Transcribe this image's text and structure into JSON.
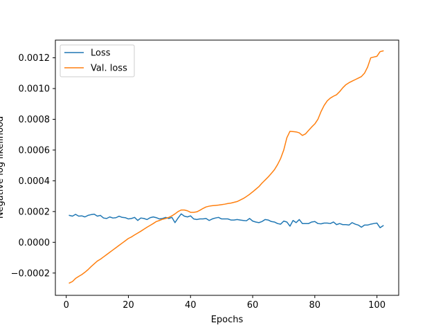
{
  "chart_data": {
    "type": "line",
    "xlabel": "Epochs",
    "ylabel": "Negative log likelihood",
    "xlim": [
      -3.5,
      107
    ],
    "ylim": [
      -0.000345,
      0.001315
    ],
    "xticks": [
      {
        "value": 0,
        "label": "0"
      },
      {
        "value": 20,
        "label": "20"
      },
      {
        "value": 40,
        "label": "40"
      },
      {
        "value": 60,
        "label": "60"
      },
      {
        "value": 80,
        "label": "80"
      },
      {
        "value": 100,
        "label": "100"
      }
    ],
    "yticks": [
      {
        "value": -0.0002,
        "label": "−0.0002"
      },
      {
        "value": 0.0,
        "label": "0.0000"
      },
      {
        "value": 0.0002,
        "label": "0.0002"
      },
      {
        "value": 0.0004,
        "label": "0.0004"
      },
      {
        "value": 0.0006,
        "label": "0.0006"
      },
      {
        "value": 0.0008,
        "label": "0.0008"
      },
      {
        "value": 0.001,
        "label": "0.0010"
      },
      {
        "value": 0.0012,
        "label": "0.0012"
      }
    ],
    "legend_position": "top-left",
    "grid": false,
    "x": [
      1,
      2,
      3,
      4,
      5,
      6,
      7,
      8,
      9,
      10,
      11,
      12,
      13,
      14,
      15,
      16,
      17,
      18,
      19,
      20,
      21,
      22,
      23,
      24,
      25,
      26,
      27,
      28,
      29,
      30,
      31,
      32,
      33,
      34,
      35,
      36,
      37,
      38,
      39,
      40,
      41,
      42,
      43,
      44,
      45,
      46,
      47,
      48,
      49,
      50,
      51,
      52,
      53,
      54,
      55,
      56,
      57,
      58,
      59,
      60,
      61,
      62,
      63,
      64,
      65,
      66,
      67,
      68,
      69,
      70,
      71,
      72,
      73,
      74,
      75,
      76,
      77,
      78,
      79,
      80,
      81,
      82,
      83,
      84,
      85,
      86,
      87,
      88,
      89,
      90,
      91,
      92,
      93,
      94,
      95,
      96,
      97,
      98,
      99,
      100,
      101,
      102
    ],
    "series": [
      {
        "name": "Loss",
        "color": "#1f77b4",
        "values": [
          0.000175,
          0.00017,
          0.000182,
          0.00017,
          0.000172,
          0.000165,
          0.000175,
          0.00018,
          0.000183,
          0.00017,
          0.000175,
          0.000158,
          0.000155,
          0.000165,
          0.000158,
          0.00016,
          0.00017,
          0.000162,
          0.00016,
          0.000152,
          0.000155,
          0.000162,
          0.000142,
          0.000158,
          0.000155,
          0.000148,
          0.00016,
          0.000165,
          0.00016,
          0.000152,
          0.000155,
          0.000162,
          0.000155,
          0.000162,
          0.000128,
          0.000158,
          0.000185,
          0.00017,
          0.000165,
          0.000172,
          0.000152,
          0.000148,
          0.000152,
          0.000152,
          0.000155,
          0.000142,
          0.000152,
          0.000158,
          0.000162,
          0.000152,
          0.000152,
          0.000152,
          0.000145,
          0.000145,
          0.000148,
          0.000145,
          0.000142,
          0.00014,
          0.000155,
          0.000138,
          0.000132,
          0.000128,
          0.000135,
          0.000148,
          0.000145,
          0.000135,
          0.000132,
          0.000122,
          0.000118,
          0.000138,
          0.000132,
          0.000105,
          0.000142,
          0.000128,
          0.000148,
          0.000122,
          0.000122,
          0.000122,
          0.000132,
          0.000135,
          0.000122,
          0.00012,
          0.000125,
          0.000125,
          0.000122,
          0.000132,
          0.000115,
          0.000122,
          0.000115,
          0.000115,
          0.000112,
          0.000128,
          0.000118,
          0.000112,
          9.8e-05,
          0.000112,
          0.000112,
          0.000118,
          0.000122,
          0.000125,
          9.5e-05,
          0.000108
        ]
      },
      {
        "name": "Val. loss",
        "color": "#ff7f0e",
        "values": [
          -0.000265,
          -0.000255,
          -0.000235,
          -0.000222,
          -0.00021,
          -0.000195,
          -0.000178,
          -0.000158,
          -0.00014,
          -0.000122,
          -0.00011,
          -9.5e-05,
          -8e-05,
          -6.5e-05,
          -5e-05,
          -3.5e-05,
          -2e-05,
          -5e-06,
          1e-05,
          2.5e-05,
          3.5e-05,
          4.8e-05,
          6e-05,
          7.2e-05,
          8.5e-05,
          9.8e-05,
          0.00011,
          0.000122,
          0.000135,
          0.000142,
          0.00015,
          0.000155,
          0.000162,
          0.000172,
          0.000185,
          0.0002,
          0.00021,
          0.00021,
          0.000205,
          0.000195,
          0.000195,
          0.000198,
          0.000208,
          0.00022,
          0.00023,
          0.000235,
          0.000238,
          0.00024,
          0.000242,
          0.000245,
          0.000248,
          0.000252,
          0.000255,
          0.00026,
          0.000265,
          0.000275,
          0.000285,
          0.000298,
          0.000312,
          0.000328,
          0.000345,
          0.000362,
          0.000385,
          0.000405,
          0.000425,
          0.000448,
          0.000472,
          0.000505,
          0.000545,
          0.0006,
          0.00068,
          0.000722,
          0.00072,
          0.000718,
          0.000712,
          0.000695,
          0.000705,
          0.000728,
          0.00075,
          0.00077,
          0.0008,
          0.00085,
          0.00089,
          0.00092,
          0.000938,
          0.00095,
          0.00096,
          0.00098,
          0.001005,
          0.001025,
          0.001038,
          0.001048,
          0.001058,
          0.001068,
          0.001078,
          0.0011,
          0.00114,
          0.0012,
          0.001205,
          0.00121,
          0.00124,
          0.001245
        ]
      }
    ]
  }
}
